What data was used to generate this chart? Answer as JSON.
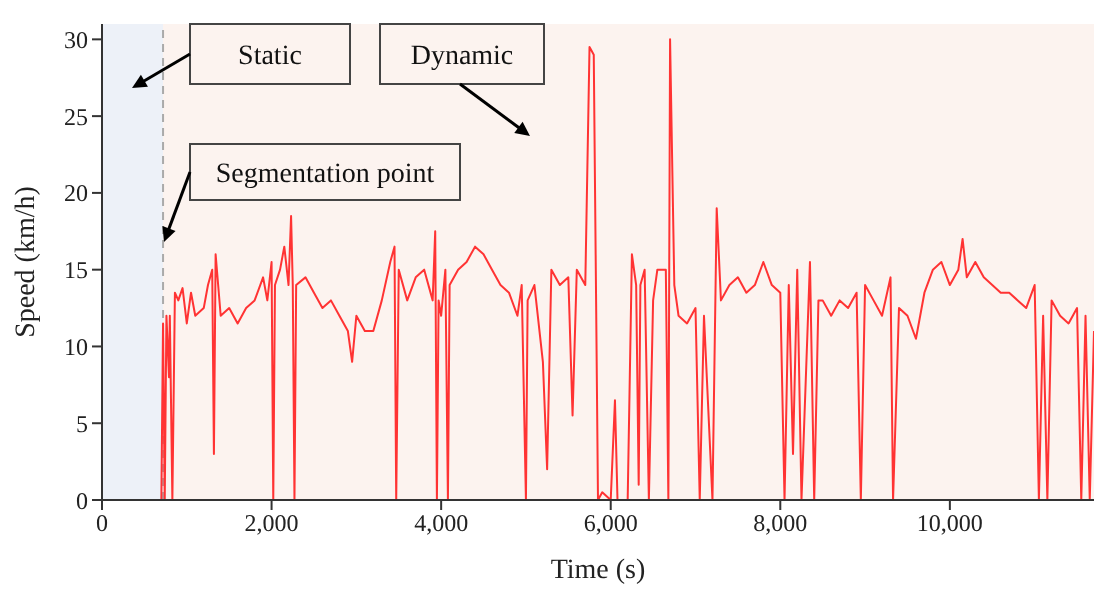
{
  "chart_data": {
    "type": "line",
    "xlabel": "Time (s)",
    "ylabel": "Speed (km/h)",
    "xlim": [
      0,
      11700
    ],
    "ylim": [
      0,
      31
    ],
    "xticks": [
      0,
      {
        "value": 2000,
        "label": "2,000"
      },
      {
        "value": 4000,
        "label": "4,000"
      },
      {
        "value": 6000,
        "label": "6,000"
      },
      {
        "value": 8000,
        "label": "8,000"
      },
      {
        "value": 10000,
        "label": "10,000"
      }
    ],
    "yticks": [
      0,
      5,
      10,
      15,
      20,
      25,
      30
    ],
    "grid": false,
    "marker": "none",
    "line_style": "solid",
    "bands": [
      {
        "axis": "x",
        "from": 0,
        "to": 720,
        "label": "Static",
        "color": "#edf1f8"
      },
      {
        "axis": "x",
        "from": 720,
        "to": 11700,
        "label": "Dynamic",
        "color": "#fcf3ef"
      }
    ],
    "ref_lines": [
      {
        "axis": "x",
        "value": 720,
        "label": "Segmentation point",
        "color": "#aaaaaa",
        "line_style": "dashed"
      }
    ],
    "series": [
      {
        "color": "#ff3333",
        "x": [
          0,
          700,
          720,
          740,
          760,
          790,
          800,
          830,
          860,
          900,
          950,
          1000,
          1050,
          1100,
          1200,
          1250,
          1300,
          1320,
          1340,
          1400,
          1500,
          1600,
          1700,
          1800,
          1900,
          1950,
          2000,
          2020,
          2040,
          2100,
          2150,
          2200,
          2230,
          2250,
          2270,
          2290,
          2400,
          2500,
          2600,
          2700,
          2800,
          2900,
          2950,
          3000,
          3100,
          3200,
          3300,
          3400,
          3450,
          3470,
          3500,
          3600,
          3700,
          3800,
          3900,
          3930,
          3950,
          3970,
          4000,
          4050,
          4080,
          4100,
          4200,
          4300,
          4400,
          4500,
          4600,
          4700,
          4800,
          4900,
          4950,
          5000,
          5020,
          5100,
          5200,
          5250,
          5300,
          5400,
          5500,
          5550,
          5600,
          5700,
          5750,
          5800,
          5850,
          5900,
          6000,
          6050,
          6080,
          6200,
          6250,
          6300,
          6330,
          6350,
          6400,
          6450,
          6500,
          6550,
          6650,
          6680,
          6700,
          6750,
          6800,
          6900,
          7000,
          7050,
          7100,
          7200,
          7250,
          7300,
          7400,
          7500,
          7600,
          7700,
          7800,
          7900,
          8000,
          8050,
          8100,
          8150,
          8200,
          8250,
          8350,
          8400,
          8450,
          8500,
          8600,
          8700,
          8800,
          8900,
          8950,
          9000,
          9100,
          9200,
          9300,
          9330,
          9400,
          9500,
          9600,
          9700,
          9800,
          9900,
          10000,
          10100,
          10150,
          10200,
          10300,
          10400,
          10500,
          10600,
          10700,
          10800,
          10900,
          11000,
          11050,
          11100,
          11150,
          11200,
          11300,
          11400,
          11500,
          11550,
          11600,
          11650,
          11700
        ],
        "values": [
          0,
          0,
          11.5,
          0,
          12,
          8,
          12,
          0,
          13.5,
          13,
          13.8,
          11.5,
          13.5,
          12,
          12.5,
          14,
          15,
          3,
          16,
          12,
          12.5,
          11.5,
          12.5,
          13,
          14.5,
          13,
          15.5,
          0,
          14,
          15,
          16.5,
          14,
          18.5,
          14,
          0,
          14,
          14.5,
          13.5,
          12.5,
          13,
          12,
          11,
          9,
          12,
          11,
          11,
          13,
          15.5,
          16.5,
          0,
          15,
          13,
          14.5,
          15,
          13,
          17.5,
          0,
          13,
          12,
          15,
          0,
          14,
          15,
          15.5,
          16.5,
          16,
          15,
          14,
          13.5,
          12,
          14,
          0,
          13,
          14,
          9,
          2,
          15,
          14,
          14.5,
          5.5,
          15,
          14,
          29.5,
          29,
          0,
          0.5,
          0,
          6.5,
          0,
          0,
          16,
          14,
          1,
          14,
          15,
          0,
          13,
          15,
          15,
          0,
          30,
          14,
          12,
          11.5,
          12.5,
          0,
          12,
          0,
          19,
          13,
          14,
          14.5,
          13.5,
          14,
          15.5,
          14,
          13.5,
          0,
          14,
          3,
          15,
          0,
          15.5,
          0,
          13,
          13,
          12,
          13,
          12.5,
          13.5,
          0,
          14,
          13,
          12,
          14.5,
          0,
          12.5,
          12,
          10.5,
          13.5,
          15,
          15.5,
          14,
          15,
          17,
          14.5,
          15.5,
          14.5,
          14,
          13.5,
          13.5,
          13,
          12.5,
          14,
          0,
          12,
          0,
          13,
          12,
          11.5,
          12.5,
          0,
          12,
          0,
          11
        ]
      }
    ]
  }
}
